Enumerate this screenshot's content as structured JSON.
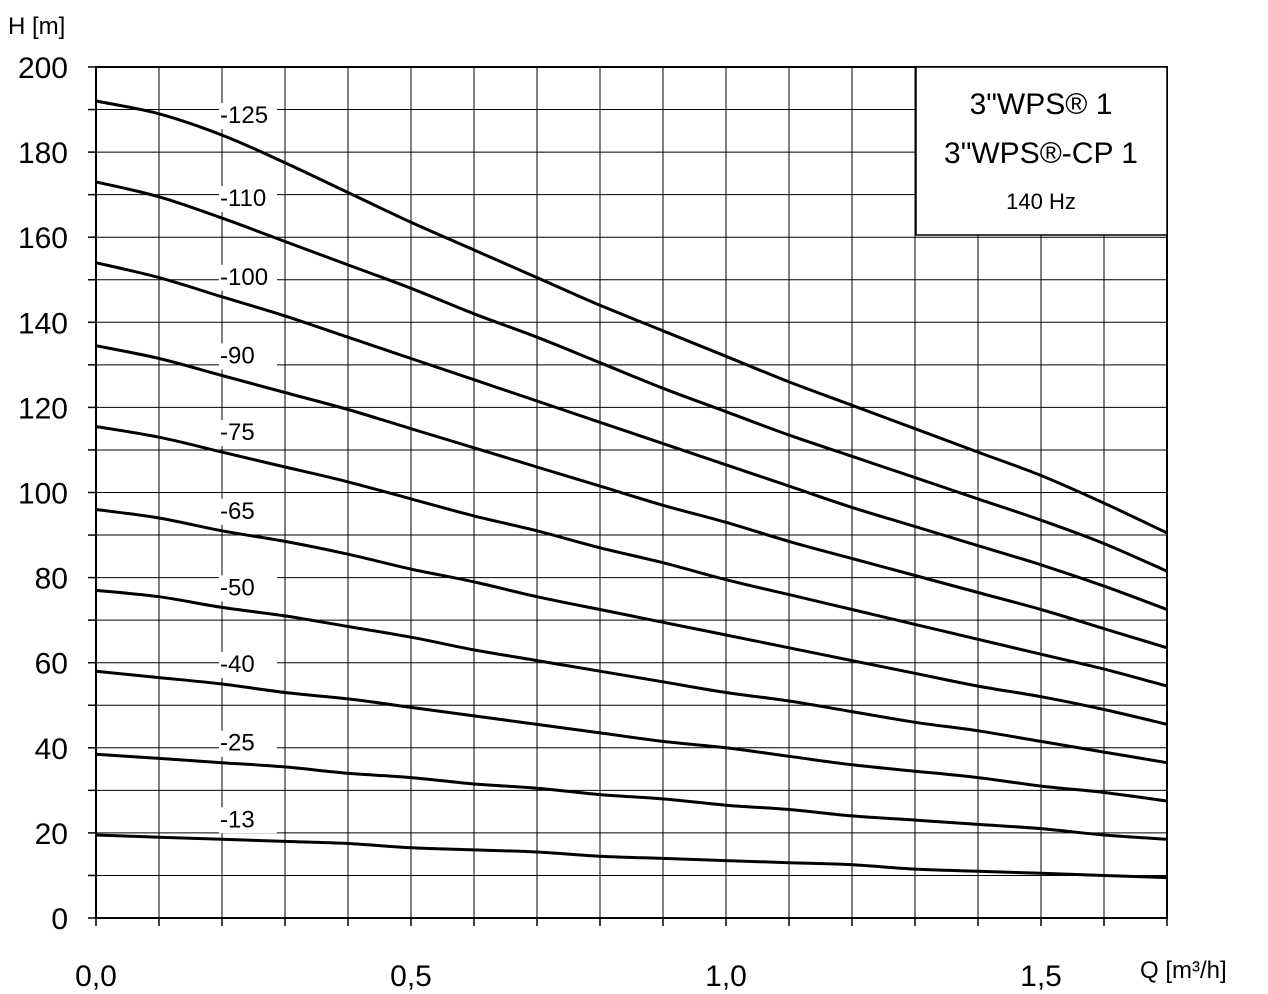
{
  "chart_data": {
    "type": "line",
    "title": "",
    "xlabel": "Q [m³/h]",
    "ylabel": "H [m]",
    "xlim": [
      0,
      1.7
    ],
    "ylim": [
      0,
      200
    ],
    "grid": true,
    "x_ticks": [
      0.0,
      0.5,
      1.0,
      1.5
    ],
    "x_tick_labels": [
      "0,0",
      "0,5",
      "1,0",
      "1,5"
    ],
    "y_ticks": [
      0,
      20,
      40,
      60,
      80,
      100,
      120,
      140,
      160,
      180,
      200
    ],
    "y_tick_labels": [
      "0",
      "20",
      "40",
      "60",
      "80",
      "100",
      "120",
      "140",
      "160",
      "180",
      "200"
    ],
    "x": [
      0,
      0.1,
      0.2,
      0.3,
      0.4,
      0.5,
      0.6,
      0.7,
      0.8,
      0.9,
      1.0,
      1.1,
      1.2,
      1.3,
      1.4,
      1.5,
      1.6,
      1.7
    ],
    "series": [
      {
        "name": "-125",
        "values": [
          192,
          189,
          184,
          177.5,
          170.5,
          163.5,
          157,
          150.5,
          144,
          138,
          132,
          126,
          120.5,
          115,
          109.5,
          104,
          97.5,
          90.5
        ]
      },
      {
        "name": "-110",
        "values": [
          173,
          169.5,
          164.5,
          159,
          153.5,
          148,
          142,
          136.5,
          130.5,
          124.5,
          119,
          113.5,
          108.5,
          103.5,
          98.5,
          93.5,
          88,
          81.5
        ]
      },
      {
        "name": "-100",
        "values": [
          154,
          150.5,
          146,
          141.5,
          136.5,
          131.5,
          126.5,
          121.5,
          116.5,
          111.5,
          106.5,
          101.5,
          96.5,
          92,
          87.5,
          83,
          78,
          72.5
        ]
      },
      {
        "name": "-90",
        "values": [
          134.5,
          131.5,
          127.5,
          123.5,
          119.5,
          115,
          110.5,
          106,
          101.5,
          97,
          93,
          88.5,
          84.5,
          80.5,
          76.5,
          72.5,
          68,
          63.5
        ]
      },
      {
        "name": "-75",
        "values": [
          115.5,
          113,
          109.5,
          106,
          102.5,
          98.5,
          94.5,
          91,
          87,
          83.5,
          79.5,
          76,
          72.5,
          69,
          65.5,
          62,
          58.5,
          54.5
        ]
      },
      {
        "name": "-65",
        "values": [
          96,
          94,
          91,
          88.5,
          85.5,
          82,
          79,
          75.5,
          72.5,
          69.5,
          66.5,
          63.5,
          60.5,
          57.5,
          54.5,
          52,
          49,
          45.5
        ]
      },
      {
        "name": "-50",
        "values": [
          77,
          75.5,
          73,
          71,
          68.5,
          66,
          63,
          60.5,
          58,
          55.5,
          53,
          51,
          48.5,
          46,
          44,
          41.5,
          39,
          36.5
        ]
      },
      {
        "name": "-40",
        "values": [
          58,
          56.5,
          55,
          53,
          51.5,
          49.5,
          47.5,
          45.5,
          43.5,
          41.5,
          40,
          38,
          36,
          34.5,
          33,
          31,
          29.5,
          27.5
        ]
      },
      {
        "name": "-25",
        "values": [
          38.5,
          37.5,
          36.5,
          35.5,
          34,
          33,
          31.5,
          30.5,
          29,
          28,
          26.5,
          25.5,
          24,
          23,
          22,
          21,
          19.5,
          18.5
        ]
      },
      {
        "name": "-13",
        "values": [
          19.5,
          19,
          18.5,
          18,
          17.5,
          16.5,
          16,
          15.5,
          14.5,
          14,
          13.5,
          13,
          12.5,
          11.5,
          11,
          10.5,
          10,
          9.5
        ]
      }
    ],
    "legend_box": {
      "line1": "3\"WPS® 1",
      "line2": "3\"WPS®-CP 1",
      "line3": "140 Hz",
      "placement": "top-right"
    }
  }
}
